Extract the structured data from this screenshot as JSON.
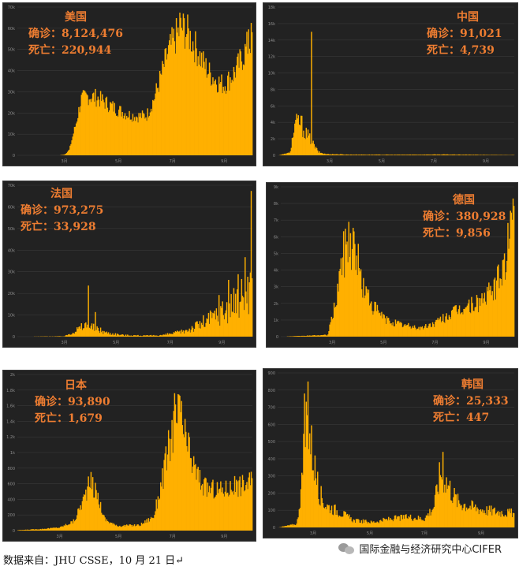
{
  "chart_data": [
    {
      "type": "bar",
      "id": "us",
      "title": "美国",
      "confirmed_label": "确诊：",
      "confirmed": "8,124,476",
      "deaths_label": "死亡：",
      "deaths": "220,944",
      "y_ticks": [
        "0",
        "10k",
        "20k",
        "30k",
        "40k",
        "50k",
        "60k",
        "70k"
      ],
      "ylim": [
        0,
        80000
      ],
      "x_ticks": [
        {
          "label": "3月",
          "pos": 0.2
        },
        {
          "label": "5月",
          "pos": 0.43
        },
        {
          "label": "7月",
          "pos": 0.66
        },
        {
          "label": "9月",
          "pos": 0.88
        }
      ],
      "shape": [
        [
          0,
          0
        ],
        [
          0.18,
          60
        ],
        [
          0.2,
          400
        ],
        [
          0.22,
          3000
        ],
        [
          0.25,
          18000
        ],
        [
          0.27,
          30000
        ],
        [
          0.3,
          32000
        ],
        [
          0.34,
          31000
        ],
        [
          0.38,
          28000
        ],
        [
          0.42,
          25000
        ],
        [
          0.47,
          22000
        ],
        [
          0.51,
          21000
        ],
        [
          0.55,
          21500
        ],
        [
          0.58,
          30000
        ],
        [
          0.61,
          42000
        ],
        [
          0.64,
          55000
        ],
        [
          0.67,
          63000
        ],
        [
          0.7,
          69000
        ],
        [
          0.73,
          65000
        ],
        [
          0.76,
          58000
        ],
        [
          0.79,
          50000
        ],
        [
          0.82,
          44000
        ],
        [
          0.85,
          40000
        ],
        [
          0.88,
          38000
        ],
        [
          0.91,
          42000
        ],
        [
          0.94,
          48000
        ],
        [
          0.97,
          56000
        ],
        [
          1.0,
          64000
        ]
      ],
      "spikes": [
        [
          0.69,
          77000
        ],
        [
          0.71,
          74000
        ],
        [
          0.985,
          68000
        ]
      ],
      "noise": 0.16
    },
    {
      "type": "bar",
      "id": "china",
      "title": "中国",
      "confirmed_label": "确诊：",
      "confirmed": "91,021",
      "deaths_label": "死亡：",
      "deaths": "4,739",
      "y_ticks": [
        "0",
        "2k",
        "4k",
        "6k",
        "8k",
        "10k",
        "12k",
        "14k",
        "16k",
        "18k"
      ],
      "ylim": [
        0,
        18000
      ],
      "x_ticks": [
        {
          "label": "3月",
          "pos": 0.22
        },
        {
          "label": "5月",
          "pos": 0.44
        },
        {
          "label": "7月",
          "pos": 0.66
        },
        {
          "label": "9月",
          "pos": 0.88
        }
      ],
      "shape": [
        [
          0,
          0
        ],
        [
          0.05,
          300
        ],
        [
          0.07,
          3500
        ],
        [
          0.09,
          4200
        ],
        [
          0.11,
          3000
        ],
        [
          0.13,
          2200
        ],
        [
          0.15,
          1300
        ],
        [
          0.17,
          400
        ],
        [
          0.2,
          150
        ],
        [
          0.3,
          80
        ],
        [
          0.5,
          60
        ],
        [
          0.7,
          90
        ],
        [
          0.9,
          40
        ],
        [
          1.0,
          30
        ]
      ],
      "spikes": [
        [
          0.14,
          15000
        ],
        [
          0.1,
          4800
        ]
      ],
      "noise": 0.35
    },
    {
      "type": "bar",
      "id": "france",
      "title": "法国",
      "confirmed_label": "确诊：",
      "confirmed": "973,275",
      "deaths_label": "死亡：",
      "deaths": "33,928",
      "y_ticks": [
        "0",
        "10k",
        "20k",
        "30k",
        "40k",
        "50k",
        "60k",
        "70k"
      ],
      "ylim": [
        0,
        80000
      ],
      "x_ticks": [
        {
          "label": "3月",
          "pos": 0.2
        },
        {
          "label": "5月",
          "pos": 0.42
        },
        {
          "label": "7月",
          "pos": 0.65
        },
        {
          "label": "9月",
          "pos": 0.87
        }
      ],
      "shape": [
        [
          0,
          0
        ],
        [
          0.2,
          200
        ],
        [
          0.25,
          3500
        ],
        [
          0.29,
          6000
        ],
        [
          0.33,
          4500
        ],
        [
          0.38,
          2000
        ],
        [
          0.45,
          800
        ],
        [
          0.55,
          500
        ],
        [
          0.62,
          800
        ],
        [
          0.7,
          2500
        ],
        [
          0.77,
          6000
        ],
        [
          0.83,
          10000
        ],
        [
          0.88,
          14000
        ],
        [
          0.93,
          18000
        ],
        [
          0.97,
          23000
        ],
        [
          1.0,
          28000
        ]
      ],
      "spikes": [
        [
          0.3,
          27000
        ],
        [
          0.33,
          13000
        ],
        [
          0.86,
          22000
        ],
        [
          0.9,
          30000
        ],
        [
          0.94,
          33000
        ],
        [
          0.97,
          42000
        ],
        [
          0.995,
          77000
        ]
      ],
      "noise": 0.55
    },
    {
      "type": "bar",
      "id": "germany",
      "title": "德国",
      "confirmed_label": "确诊：",
      "confirmed": "380,928",
      "deaths_label": "死亡：",
      "deaths": "9,856",
      "y_ticks": [
        "0",
        "1k",
        "2k",
        "3k",
        "4k",
        "5k",
        "6k",
        "7k",
        "8k",
        "9k"
      ],
      "ylim": [
        0,
        9000
      ],
      "x_ticks": [
        {
          "label": "3月",
          "pos": 0.22
        },
        {
          "label": "5月",
          "pos": 0.44
        },
        {
          "label": "7月",
          "pos": 0.66
        },
        {
          "label": "9月",
          "pos": 0.88
        }
      ],
      "shape": [
        [
          0,
          0
        ],
        [
          0.2,
          100
        ],
        [
          0.23,
          1800
        ],
        [
          0.26,
          4500
        ],
        [
          0.29,
          6000
        ],
        [
          0.32,
          5200
        ],
        [
          0.35,
          3000
        ],
        [
          0.4,
          1700
        ],
        [
          0.45,
          1000
        ],
        [
          0.52,
          700
        ],
        [
          0.6,
          500
        ],
        [
          0.66,
          800
        ],
        [
          0.72,
          1300
        ],
        [
          0.78,
          1700
        ],
        [
          0.84,
          2000
        ],
        [
          0.9,
          2600
        ],
        [
          0.94,
          3500
        ],
        [
          0.97,
          5000
        ],
        [
          1.0,
          7500
        ]
      ],
      "spikes": [
        [
          0.29,
          6900
        ],
        [
          0.995,
          8300
        ]
      ],
      "noise": 0.3
    },
    {
      "type": "bar",
      "id": "japan",
      "title": "日本",
      "confirmed_label": "确诊：",
      "confirmed": "93,890",
      "deaths_label": "死亡：",
      "deaths": "1,679",
      "y_ticks": [
        "0",
        "200",
        "400",
        "600",
        "800",
        "1k",
        "1.2k",
        "1.4k",
        "1.6k",
        "1.8k",
        "2k"
      ],
      "ylim": [
        0,
        2000
      ],
      "x_ticks": [
        {
          "label": "3月",
          "pos": 0.18
        },
        {
          "label": "5月",
          "pos": 0.43
        },
        {
          "label": "7月",
          "pos": 0.66
        },
        {
          "label": "9月",
          "pos": 0.88
        }
      ],
      "shape": [
        [
          0,
          5
        ],
        [
          0.1,
          20
        ],
        [
          0.18,
          40
        ],
        [
          0.24,
          120
        ],
        [
          0.28,
          400
        ],
        [
          0.31,
          620
        ],
        [
          0.34,
          450
        ],
        [
          0.37,
          150
        ],
        [
          0.42,
          60
        ],
        [
          0.52,
          70
        ],
        [
          0.58,
          180
        ],
        [
          0.62,
          700
        ],
        [
          0.66,
          1300
        ],
        [
          0.69,
          1500
        ],
        [
          0.72,
          1100
        ],
        [
          0.76,
          750
        ],
        [
          0.8,
          550
        ],
        [
          0.86,
          520
        ],
        [
          0.92,
          560
        ],
        [
          0.97,
          600
        ],
        [
          1.0,
          650
        ]
      ],
      "spikes": [
        [
          0.67,
          1760
        ],
        [
          0.7,
          1660
        ]
      ],
      "noise": 0.25
    },
    {
      "type": "bar",
      "id": "korea",
      "title": "韩国",
      "confirmed_label": "确诊：",
      "confirmed": "25,333",
      "deaths_label": "死亡：",
      "deaths": "447",
      "y_ticks": [
        "0",
        "100",
        "200",
        "300",
        "400",
        "500",
        "600",
        "700",
        "800",
        "900"
      ],
      "ylim": [
        0,
        900
      ],
      "x_ticks": [
        {
          "label": "3月",
          "pos": 0.15
        },
        {
          "label": "5月",
          "pos": 0.39
        },
        {
          "label": "7月",
          "pos": 0.62
        },
        {
          "label": "9月",
          "pos": 0.86
        }
      ],
      "shape": [
        [
          0,
          0
        ],
        [
          0.08,
          20
        ],
        [
          0.1,
          250
        ],
        [
          0.12,
          650
        ],
        [
          0.14,
          480
        ],
        [
          0.17,
          220
        ],
        [
          0.2,
          130
        ],
        [
          0.26,
          90
        ],
        [
          0.32,
          40
        ],
        [
          0.4,
          30
        ],
        [
          0.48,
          50
        ],
        [
          0.56,
          60
        ],
        [
          0.62,
          50
        ],
        [
          0.66,
          120
        ],
        [
          0.69,
          330
        ],
        [
          0.72,
          250
        ],
        [
          0.76,
          150
        ],
        [
          0.82,
          120
        ],
        [
          0.88,
          100
        ],
        [
          0.94,
          90
        ],
        [
          1.0,
          80
        ]
      ],
      "spikes": [
        [
          0.125,
          850
        ],
        [
          0.11,
          780
        ],
        [
          0.7,
          440
        ]
      ],
      "noise": 0.35
    }
  ],
  "footer": {
    "source": "数据来自：JHU CSSE，10 月 21 日↵",
    "brand": "国际金融与经济研究中心CIFER",
    "brand_icon": "wechat-icon"
  },
  "colors": {
    "bar": "#ffb000",
    "panel_bg": "#222222",
    "stats_text": "#ee7d31"
  }
}
